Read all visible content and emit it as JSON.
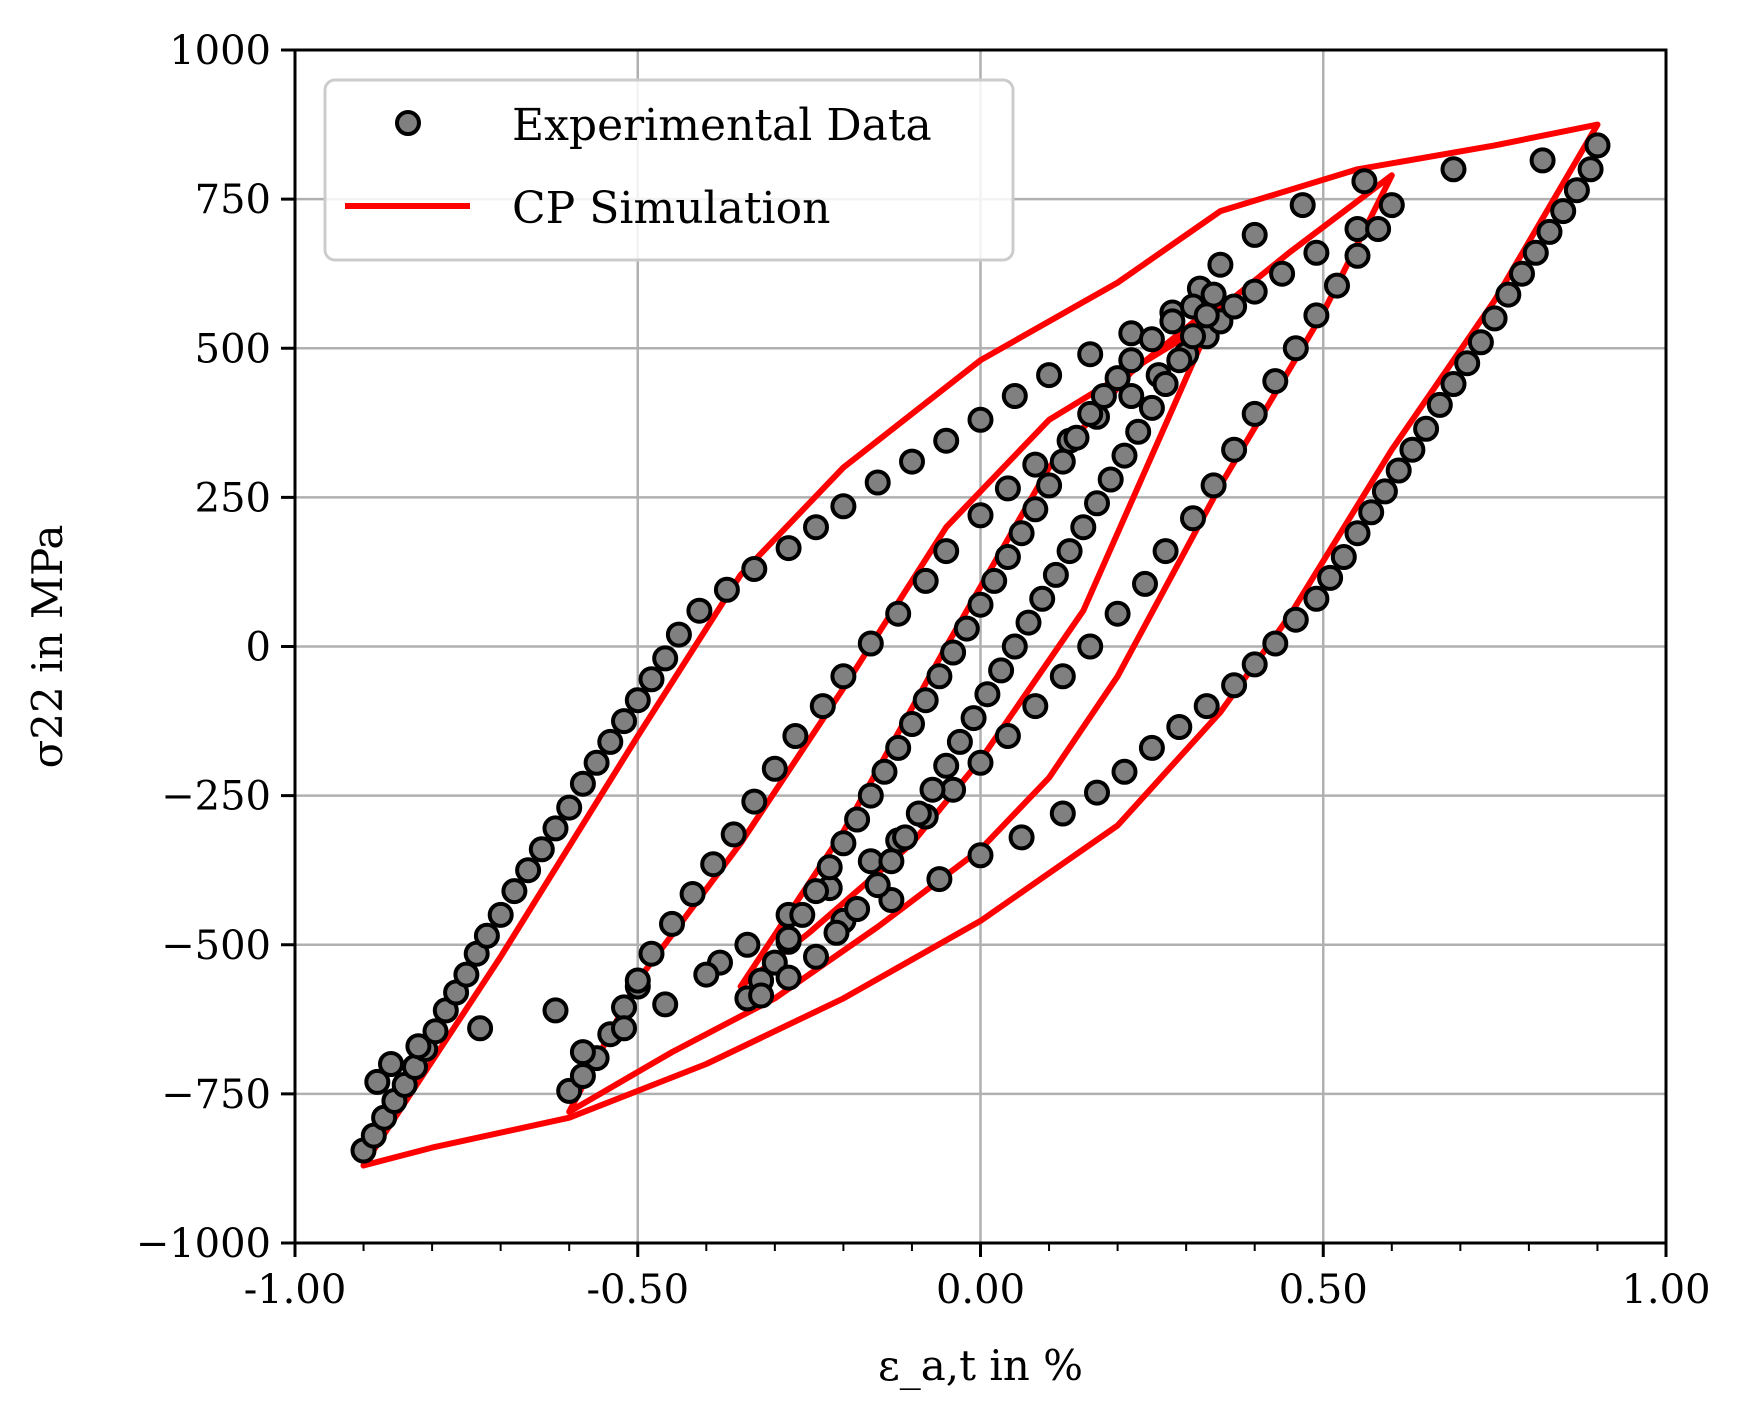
{
  "chart_data": {
    "type": "scatter",
    "title": "",
    "xlabel": "ε_a,t in %",
    "ylabel": "σ22 in MPa",
    "xlim": [
      -1.0,
      1.0
    ],
    "ylim": [
      -1000,
      1000
    ],
    "x_ticks": [
      -1.0,
      -0.5,
      0.0,
      0.5,
      1.0
    ],
    "x_tick_labels": [
      "-1.00",
      "-0.50",
      "0.00",
      "0.50",
      "1.00"
    ],
    "y_ticks": [
      -1000,
      -750,
      -500,
      -250,
      0,
      250,
      500,
      750,
      1000
    ],
    "y_tick_labels": [
      "−1000",
      "−750",
      "−500",
      "−250",
      "0",
      "250",
      "500",
      "750",
      "1000"
    ],
    "grid": true,
    "legend_position": "top-left",
    "legend": [
      "Experimental Data",
      "CP Simulation"
    ],
    "colors": {
      "marker_fill": "#808080",
      "marker_edge": "#000000",
      "sim_line": "#ff0000",
      "grid": "#b0b0b0"
    },
    "series": [
      {
        "name": "Experimental Data",
        "style": "markers",
        "points": [
          [
            -0.9,
            -845
          ],
          [
            -0.885,
            -820
          ],
          [
            -0.87,
            -790
          ],
          [
            -0.855,
            -762
          ],
          [
            -0.84,
            -735
          ],
          [
            -0.825,
            -705
          ],
          [
            -0.81,
            -675
          ],
          [
            -0.795,
            -645
          ],
          [
            -0.78,
            -610
          ],
          [
            -0.765,
            -580
          ],
          [
            -0.75,
            -550
          ],
          [
            -0.735,
            -515
          ],
          [
            -0.72,
            -485
          ],
          [
            -0.7,
            -450
          ],
          [
            -0.68,
            -410
          ],
          [
            -0.66,
            -375
          ],
          [
            -0.64,
            -340
          ],
          [
            -0.62,
            -305
          ],
          [
            -0.6,
            -270
          ],
          [
            -0.58,
            -230
          ],
          [
            -0.56,
            -195
          ],
          [
            -0.54,
            -160
          ],
          [
            -0.52,
            -125
          ],
          [
            -0.5,
            -90
          ],
          [
            -0.48,
            -55
          ],
          [
            -0.46,
            -20
          ],
          [
            -0.44,
            20
          ],
          [
            -0.41,
            60
          ],
          [
            -0.37,
            95
          ],
          [
            -0.33,
            130
          ],
          [
            -0.28,
            165
          ],
          [
            -0.24,
            200
          ],
          [
            -0.2,
            235
          ],
          [
            -0.15,
            275
          ],
          [
            -0.1,
            310
          ],
          [
            -0.05,
            345
          ],
          [
            0.0,
            380
          ],
          [
            0.05,
            420
          ],
          [
            0.1,
            455
          ],
          [
            0.16,
            490
          ],
          [
            0.22,
            525
          ],
          [
            0.28,
            560
          ],
          [
            0.32,
            600
          ],
          [
            0.35,
            640
          ],
          [
            0.4,
            690
          ],
          [
            0.47,
            740
          ],
          [
            0.56,
            780
          ],
          [
            0.69,
            800
          ],
          [
            0.82,
            815
          ],
          [
            0.9,
            840
          ],
          [
            0.89,
            800
          ],
          [
            0.87,
            765
          ],
          [
            0.85,
            730
          ],
          [
            0.83,
            695
          ],
          [
            0.81,
            660
          ],
          [
            0.79,
            625
          ],
          [
            0.77,
            590
          ],
          [
            0.75,
            550
          ],
          [
            0.73,
            510
          ],
          [
            0.71,
            475
          ],
          [
            0.69,
            440
          ],
          [
            0.67,
            405
          ],
          [
            0.65,
            365
          ],
          [
            0.63,
            330
          ],
          [
            0.61,
            295
          ],
          [
            0.59,
            260
          ],
          [
            0.57,
            225
          ],
          [
            0.55,
            190
          ],
          [
            0.53,
            150
          ],
          [
            0.51,
            115
          ],
          [
            0.49,
            80
          ],
          [
            0.46,
            45
          ],
          [
            0.43,
            5
          ],
          [
            0.4,
            -30
          ],
          [
            0.37,
            -65
          ],
          [
            0.33,
            -100
          ],
          [
            0.29,
            -135
          ],
          [
            0.25,
            -170
          ],
          [
            0.21,
            -210
          ],
          [
            0.17,
            -245
          ],
          [
            0.12,
            -280
          ],
          [
            0.06,
            -320
          ],
          [
            0.0,
            -350
          ],
          [
            -0.06,
            -390
          ],
          [
            -0.13,
            -425
          ],
          [
            -0.2,
            -460
          ],
          [
            -0.28,
            -495
          ],
          [
            -0.38,
            -530
          ],
          [
            -0.5,
            -570
          ],
          [
            -0.62,
            -610
          ],
          [
            -0.73,
            -640
          ],
          [
            -0.82,
            -670
          ],
          [
            -0.86,
            -700
          ],
          [
            -0.88,
            -730
          ],
          [
            -0.6,
            -745
          ],
          [
            -0.58,
            -720
          ],
          [
            -0.56,
            -690
          ],
          [
            -0.54,
            -650
          ],
          [
            -0.52,
            -605
          ],
          [
            -0.5,
            -560
          ],
          [
            -0.48,
            -515
          ],
          [
            -0.45,
            -465
          ],
          [
            -0.42,
            -415
          ],
          [
            -0.39,
            -365
          ],
          [
            -0.36,
            -315
          ],
          [
            -0.33,
            -260
          ],
          [
            -0.3,
            -205
          ],
          [
            -0.27,
            -150
          ],
          [
            -0.23,
            -100
          ],
          [
            -0.2,
            -50
          ],
          [
            -0.16,
            5
          ],
          [
            -0.12,
            55
          ],
          [
            -0.08,
            110
          ],
          [
            -0.05,
            160
          ],
          [
            0.0,
            220
          ],
          [
            0.04,
            265
          ],
          [
            0.08,
            305
          ],
          [
            0.13,
            345
          ],
          [
            0.17,
            385
          ],
          [
            0.22,
            420
          ],
          [
            0.26,
            455
          ],
          [
            0.3,
            490
          ],
          [
            0.33,
            520
          ],
          [
            0.35,
            545
          ],
          [
            0.37,
            570
          ],
          [
            0.4,
            595
          ],
          [
            0.44,
            625
          ],
          [
            0.49,
            660
          ],
          [
            0.55,
            700
          ],
          [
            0.6,
            740
          ],
          [
            0.58,
            700
          ],
          [
            0.55,
            655
          ],
          [
            0.52,
            605
          ],
          [
            0.49,
            555
          ],
          [
            0.46,
            500
          ],
          [
            0.43,
            445
          ],
          [
            0.4,
            390
          ],
          [
            0.37,
            330
          ],
          [
            0.34,
            270
          ],
          [
            0.31,
            215
          ],
          [
            0.27,
            160
          ],
          [
            0.24,
            105
          ],
          [
            0.2,
            55
          ],
          [
            0.16,
            0
          ],
          [
            0.12,
            -50
          ],
          [
            0.08,
            -100
          ],
          [
            0.04,
            -150
          ],
          [
            0.0,
            -195
          ],
          [
            -0.04,
            -240
          ],
          [
            -0.08,
            -285
          ],
          [
            -0.12,
            -325
          ],
          [
            -0.16,
            -360
          ],
          [
            -0.22,
            -405
          ],
          [
            -0.28,
            -450
          ],
          [
            -0.34,
            -500
          ],
          [
            -0.4,
            -550
          ],
          [
            -0.46,
            -600
          ],
          [
            -0.52,
            -640
          ],
          [
            -0.58,
            -680
          ],
          [
            -0.34,
            -590
          ],
          [
            -0.32,
            -560
          ],
          [
            -0.3,
            -530
          ],
          [
            -0.28,
            -490
          ],
          [
            -0.26,
            -450
          ],
          [
            -0.24,
            -410
          ],
          [
            -0.22,
            -370
          ],
          [
            -0.2,
            -330
          ],
          [
            -0.18,
            -290
          ],
          [
            -0.16,
            -250
          ],
          [
            -0.14,
            -210
          ],
          [
            -0.12,
            -170
          ],
          [
            -0.1,
            -130
          ],
          [
            -0.08,
            -90
          ],
          [
            -0.06,
            -50
          ],
          [
            -0.04,
            -10
          ],
          [
            -0.02,
            30
          ],
          [
            0.0,
            70
          ],
          [
            0.02,
            110
          ],
          [
            0.04,
            150
          ],
          [
            0.06,
            190
          ],
          [
            0.08,
            230
          ],
          [
            0.1,
            270
          ],
          [
            0.12,
            310
          ],
          [
            0.14,
            350
          ],
          [
            0.16,
            390
          ],
          [
            0.18,
            420
          ],
          [
            0.2,
            450
          ],
          [
            0.22,
            480
          ],
          [
            0.25,
            515
          ],
          [
            0.28,
            545
          ],
          [
            0.31,
            570
          ],
          [
            0.34,
            590
          ],
          [
            0.33,
            555
          ],
          [
            0.31,
            520
          ],
          [
            0.29,
            480
          ],
          [
            0.27,
            440
          ],
          [
            0.25,
            400
          ],
          [
            0.23,
            360
          ],
          [
            0.21,
            320
          ],
          [
            0.19,
            280
          ],
          [
            0.17,
            240
          ],
          [
            0.15,
            200
          ],
          [
            0.13,
            160
          ],
          [
            0.11,
            120
          ],
          [
            0.09,
            80
          ],
          [
            0.07,
            40
          ],
          [
            0.05,
            0
          ],
          [
            0.03,
            -40
          ],
          [
            0.01,
            -80
          ],
          [
            -0.01,
            -120
          ],
          [
            -0.03,
            -160
          ],
          [
            -0.05,
            -200
          ],
          [
            -0.07,
            -240
          ],
          [
            -0.09,
            -280
          ],
          [
            -0.11,
            -320
          ],
          [
            -0.13,
            -360
          ],
          [
            -0.15,
            -400
          ],
          [
            -0.18,
            -440
          ],
          [
            -0.21,
            -480
          ],
          [
            -0.24,
            -520
          ],
          [
            -0.28,
            -555
          ],
          [
            -0.32,
            -585
          ]
        ]
      },
      {
        "name": "CP Simulation",
        "style": "line",
        "segments": [
          [
            [
              -0.9,
              -870
            ],
            [
              -0.8,
              -840
            ],
            [
              -0.6,
              -790
            ],
            [
              -0.4,
              -700
            ],
            [
              -0.2,
              -590
            ],
            [
              0.0,
              -460
            ],
            [
              0.2,
              -300
            ],
            [
              0.35,
              -110
            ],
            [
              0.45,
              50
            ],
            [
              0.6,
              330
            ],
            [
              0.75,
              580
            ],
            [
              0.9,
              875
            ],
            [
              0.75,
              840
            ],
            [
              0.55,
              800
            ],
            [
              0.35,
              730
            ],
            [
              0.2,
              610
            ],
            [
              0.0,
              480
            ],
            [
              -0.2,
              300
            ],
            [
              -0.35,
              120
            ],
            [
              -0.5,
              -150
            ],
            [
              -0.7,
              -520
            ],
            [
              -0.9,
              -870
            ]
          ],
          [
            [
              -0.6,
              -780
            ],
            [
              -0.45,
              -680
            ],
            [
              -0.3,
              -590
            ],
            [
              -0.15,
              -470
            ],
            [
              0.0,
              -340
            ],
            [
              0.1,
              -220
            ],
            [
              0.2,
              -50
            ],
            [
              0.35,
              270
            ],
            [
              0.5,
              560
            ],
            [
              0.6,
              790
            ],
            [
              0.45,
              660
            ],
            [
              0.3,
              520
            ],
            [
              0.1,
              380
            ],
            [
              -0.05,
              200
            ],
            [
              -0.2,
              -70
            ],
            [
              -0.35,
              -330
            ],
            [
              -0.5,
              -560
            ],
            [
              -0.6,
              -780
            ]
          ],
          [
            [
              -0.35,
              -570
            ],
            [
              -0.25,
              -480
            ],
            [
              -0.1,
              -330
            ],
            [
              0.0,
              -190
            ],
            [
              0.15,
              60
            ],
            [
              0.35,
              580
            ],
            [
              0.22,
              460
            ],
            [
              0.1,
              300
            ],
            [
              -0.05,
              0
            ],
            [
              -0.2,
              -310
            ],
            [
              -0.35,
              -570
            ]
          ]
        ]
      }
    ]
  }
}
